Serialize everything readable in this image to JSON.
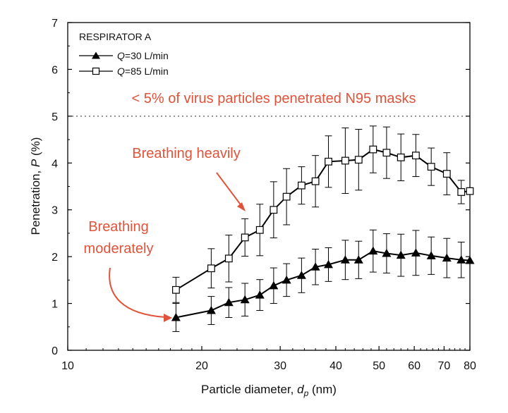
{
  "chart_data": {
    "type": "line",
    "x_scale": "log",
    "xlim": [
      10,
      80
    ],
    "ylim": [
      0,
      7
    ],
    "xticks": [
      10,
      20,
      30,
      40,
      50,
      60,
      70,
      80
    ],
    "yticks": [
      0,
      1,
      2,
      3,
      4,
      5,
      6,
      7
    ],
    "xlabel": "Particle diameter, d_p (nm)",
    "xlabel_parts": {
      "pre": "Particle diameter, ",
      "var": "d",
      "sub": "p",
      "post": " (nm)"
    },
    "ylabel": "Penetration, P (%)",
    "ylabel_parts": {
      "pre": "Penetration, ",
      "var": "P",
      "post": " (%)"
    },
    "grid": false,
    "legend": {
      "title": "RESPIRATOR A",
      "position": "top-left",
      "entries": [
        {
          "var": "Q",
          "text": "=30 L/min",
          "marker": "filled-triangle"
        },
        {
          "var": "Q",
          "text": "=85 L/min",
          "marker": "open-square"
        }
      ]
    },
    "reference_line": {
      "y": 5,
      "style": "dotted",
      "label": "< 5% of virus particles penetrated N95 masks"
    },
    "annotations": [
      {
        "lines": [
          "Breathing heavily"
        ],
        "points_to": "85 L/min series"
      },
      {
        "lines": [
          "Breathing",
          "moderately"
        ],
        "points_to": "30 L/min series"
      }
    ],
    "series": [
      {
        "name": "Q=30 L/min",
        "marker": "filled-triangle",
        "color": "#000000",
        "x": [
          17.5,
          21,
          23,
          25,
          27,
          29,
          31,
          33.5,
          36,
          38.5,
          42,
          45,
          48.5,
          52,
          56,
          60.5,
          65.5,
          71,
          76.5,
          80
        ],
        "y": [
          0.7,
          0.85,
          1.02,
          1.08,
          1.18,
          1.38,
          1.5,
          1.6,
          1.78,
          1.83,
          1.93,
          1.93,
          2.12,
          2.07,
          2.03,
          2.08,
          2.02,
          1.97,
          1.93,
          1.92
        ],
        "err": [
          0.3,
          0.3,
          0.32,
          0.35,
          0.33,
          0.38,
          0.35,
          0.37,
          0.38,
          0.36,
          0.42,
          0.4,
          0.45,
          0.42,
          0.45,
          0.48,
          0.4,
          0.42,
          0.38,
          0.0
        ]
      },
      {
        "name": "Q=85 L/min",
        "marker": "open-square",
        "color": "#000000",
        "x": [
          17.5,
          21,
          23,
          25,
          27,
          29,
          31,
          33.5,
          36,
          38.5,
          42,
          45,
          48.5,
          52,
          56,
          60.5,
          65.5,
          71,
          76.5,
          80
        ],
        "y": [
          1.29,
          1.75,
          1.96,
          2.41,
          2.57,
          3.0,
          3.28,
          3.52,
          3.61,
          4.03,
          4.05,
          4.07,
          4.29,
          4.22,
          4.12,
          4.16,
          3.92,
          3.77,
          3.38,
          3.4
        ],
        "err": [
          0.27,
          0.42,
          0.5,
          0.4,
          0.55,
          0.6,
          0.6,
          0.4,
          0.55,
          0.55,
          0.7,
          0.65,
          0.5,
          0.55,
          0.5,
          0.45,
          0.4,
          0.45,
          0.25,
          0.0
        ]
      }
    ]
  }
}
